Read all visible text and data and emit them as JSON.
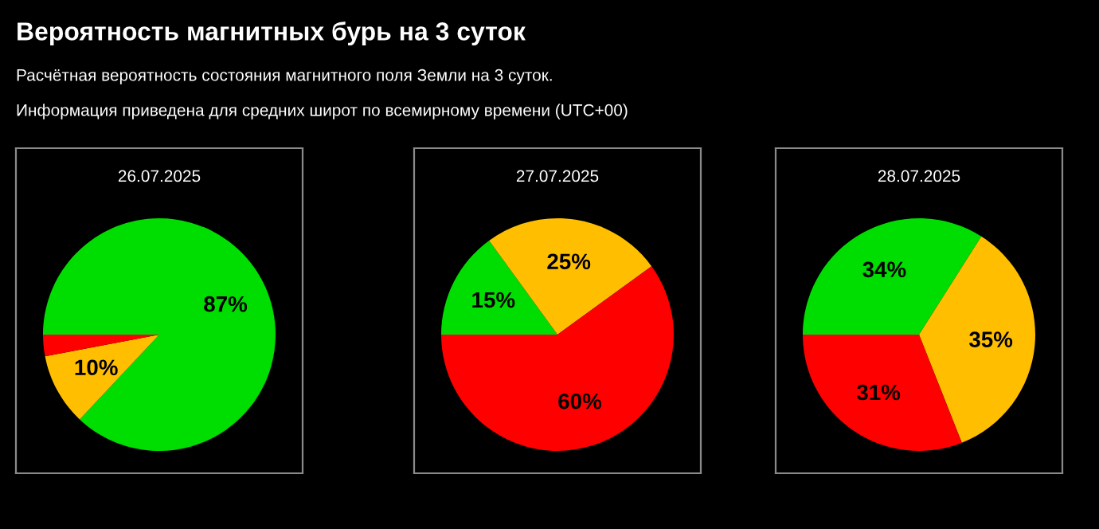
{
  "chart_data": [
    {
      "type": "pie",
      "title": "26.07.2025",
      "categories": [
        null,
        null,
        null
      ],
      "values": [
        87,
        10,
        3
      ],
      "colors": [
        "#00dd00",
        "#ffbf00",
        "#ff0000"
      ],
      "value_labels": [
        "87%",
        "10%",
        null
      ],
      "annotations": [
        "Вероятность магнитных бурь на 3 суток",
        "Расчётная вероятность состояния магнитного поля Земли на 3 суток.",
        "Информация приведена для средних широт по всемирному времени (UTC+00)"
      ]
    },
    {
      "type": "pie",
      "title": "27.07.2025",
      "categories": [
        null,
        null,
        null
      ],
      "values": [
        15,
        25,
        60
      ],
      "colors": [
        "#00dd00",
        "#ffbf00",
        "#ff0000"
      ],
      "value_labels": [
        "15%",
        "25%",
        "60%"
      ]
    },
    {
      "type": "pie",
      "title": "28.07.2025",
      "categories": [
        null,
        null,
        null
      ],
      "values": [
        34,
        35,
        31
      ],
      "colors": [
        "#00dd00",
        "#ffbf00",
        "#ff0000"
      ],
      "value_labels": [
        "34%",
        "35%",
        "31%"
      ]
    }
  ]
}
